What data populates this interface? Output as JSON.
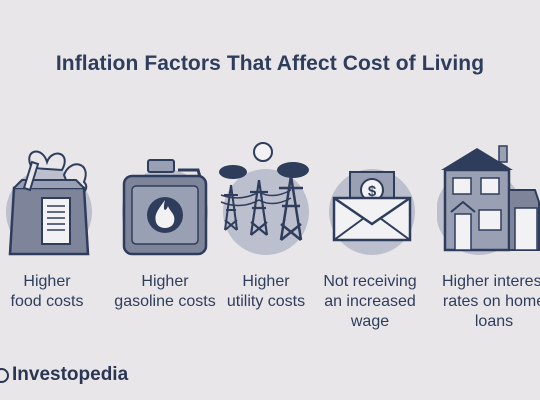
{
  "title": "Inflation Factors That Affect Cost of Living",
  "items": [
    {
      "icon": "grocery-bag-icon",
      "label": [
        "Higher",
        "food costs"
      ]
    },
    {
      "icon": "gas-can-icon",
      "label": [
        "Higher",
        "gasoline costs"
      ]
    },
    {
      "icon": "power-lines-icon",
      "label": [
        "Higher",
        "utility costs"
      ]
    },
    {
      "icon": "envelope-money-icon",
      "label": [
        "Not receiving",
        "an increased",
        "wage"
      ]
    },
    {
      "icon": "house-icon",
      "label": [
        "Higher interest",
        "rates on home",
        "loans"
      ]
    }
  ],
  "brand": "Investopedia",
  "colors": {
    "background": "#e8e6e8",
    "ink": "#2f3d5c",
    "circle": "#bcbfcd"
  }
}
